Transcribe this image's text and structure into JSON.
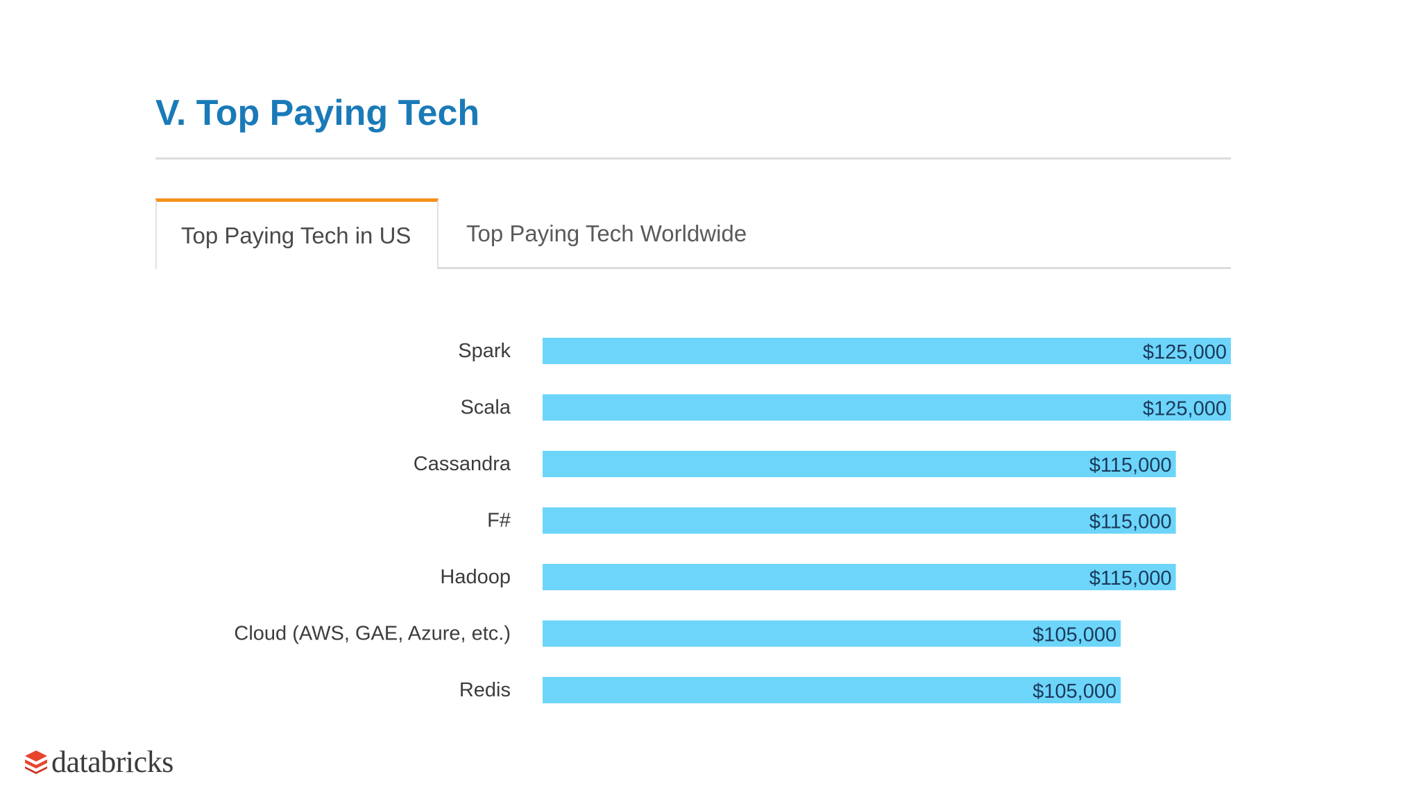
{
  "page": {
    "title": "V. Top Paying Tech",
    "title_color": "#1a7ab8"
  },
  "tabs": [
    {
      "label": "Top Paying Tech in US",
      "active": true
    },
    {
      "label": "Top Paying Tech Worldwide",
      "active": false
    }
  ],
  "tab_accent_color": "#f5921e",
  "chart_data": {
    "type": "bar",
    "orientation": "horizontal",
    "categories": [
      "Spark",
      "Scala",
      "Cassandra",
      "F#",
      "Hadoop",
      "Cloud (AWS, GAE, Azure, etc.)",
      "Redis"
    ],
    "values": [
      125000,
      125000,
      115000,
      115000,
      115000,
      105000,
      105000
    ],
    "data_labels": [
      "$125,000",
      "$125,000",
      "$115,000",
      "$115,000",
      "$115,000",
      "$105,000",
      "$105,000"
    ],
    "title": "",
    "xlabel": "",
    "ylabel": "",
    "xlim": [
      0,
      125000
    ],
    "grid": false,
    "legend": "none",
    "bar_color": "#6dd5fa",
    "label_color": "#1a3a5c"
  },
  "footer": {
    "logo_text": "databricks",
    "logo_icon": "databricks-stack-icon",
    "logo_color": "#e8442d"
  }
}
